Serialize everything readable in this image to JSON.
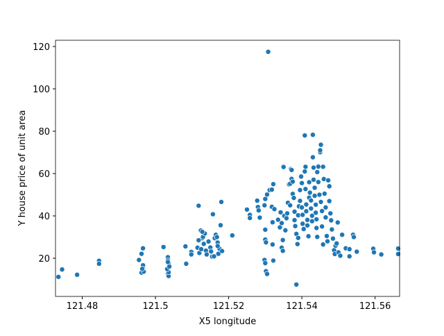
{
  "chart_data": {
    "type": "scatter",
    "xlabel": "X5 longitude",
    "ylabel": "Y house price of unit area",
    "color": "#1f77b4",
    "xlim": [
      121.4727,
      121.5667
    ],
    "ylim": [
      1.97,
      122.95
    ],
    "xticks": [
      121.48,
      121.5,
      121.52,
      121.54,
      121.56
    ],
    "yticks": [
      20,
      40,
      60,
      80,
      100,
      120
    ],
    "x": [
      121.4735,
      121.4745,
      121.4786,
      121.4846,
      121.4846,
      121.4955,
      121.4962,
      121.4966,
      121.4962,
      121.4966,
      121.4968,
      121.4966,
      121.4964,
      121.5022,
      121.5034,
      121.5034,
      121.5036,
      121.5034,
      121.5036,
      121.5036,
      121.5032,
      121.5038,
      121.5034,
      121.5082,
      121.5084,
      121.5098,
      121.5098,
      121.5118,
      121.5128,
      121.5124,
      121.513,
      121.5118,
      121.5115,
      121.512,
      121.5125,
      121.5132,
      121.5138,
      121.514,
      121.5145,
      121.515,
      121.5152,
      121.5155,
      121.516,
      121.5162,
      121.5165,
      121.5168,
      121.517,
      121.5172,
      121.5175,
      121.5178,
      121.518,
      121.5182,
      121.5157,
      121.5135,
      121.5128,
      121.517,
      121.521,
      121.525,
      121.5258,
      121.5258,
      121.528,
      121.5282,
      121.5278,
      121.5285,
      121.5298,
      121.53,
      121.5302,
      121.5305,
      121.53,
      121.53,
      121.5302,
      121.5298,
      121.53,
      121.5305,
      121.5308,
      121.5312,
      121.5318,
      121.5318,
      121.532,
      121.5322,
      121.532,
      121.5325,
      121.5322,
      121.5335,
      121.534,
      121.5342,
      121.5345,
      121.5345,
      121.5348,
      121.5348,
      121.535,
      121.5352,
      121.5355,
      121.5358,
      121.536,
      121.5362,
      121.5365,
      121.5368,
      121.5368,
      121.537,
      121.5372,
      121.5372,
      121.5375,
      121.5375,
      121.5378,
      121.538,
      121.538,
      121.5382,
      121.5385,
      121.5385,
      121.5388,
      121.539,
      121.539,
      121.5392,
      121.5395,
      121.5395,
      121.5398,
      121.54,
      121.54,
      121.5402,
      121.5402,
      121.5405,
      121.5408,
      121.5408,
      121.541,
      121.541,
      121.5412,
      121.5412,
      121.5415,
      121.5415,
      121.5418,
      121.542,
      121.542,
      121.5422,
      121.5425,
      121.5425,
      121.5428,
      121.5428,
      121.543,
      121.543,
      121.5432,
      121.5432,
      121.5435,
      121.5435,
      121.5438,
      121.5438,
      121.544,
      121.544,
      121.5442,
      121.5442,
      121.5445,
      121.5445,
      121.5448,
      121.545,
      121.545,
      121.5452,
      121.5452,
      121.5455,
      121.5455,
      121.5458,
      121.5458,
      121.546,
      121.5462,
      121.5465,
      121.5465,
      121.5468,
      121.547,
      121.5472,
      121.5475,
      121.5475,
      121.5478,
      121.548,
      121.5482,
      121.5485,
      121.5488,
      121.549,
      121.5492,
      121.5495,
      121.5498,
      121.55,
      121.5505,
      121.551,
      121.552,
      121.553,
      121.553,
      121.554,
      121.5542,
      121.555,
      121.5595,
      121.5597,
      121.5617,
      121.5663,
      121.5663
    ],
    "values": [
      11.2,
      14.7,
      12.2,
      18.8,
      17.4,
      19.2,
      22.1,
      24.7,
      13.2,
      15.6,
      13.7,
      16.7,
      15.0,
      25.3,
      20.5,
      19.0,
      17.7,
      12.8,
      11.6,
      13.4,
      14.9,
      16.1,
      18.2,
      25.6,
      17.4,
      23.0,
      21.8,
      44.8,
      29.5,
      33.1,
      30.1,
      28.5,
      25.0,
      22.5,
      24.3,
      26.8,
      23.6,
      21.8,
      27.9,
      25.1,
      23.2,
      20.8,
      20.9,
      29.5,
      31.1,
      30.0,
      27.4,
      22.1,
      24.5,
      35.6,
      46.6,
      23.4,
      40.8,
      31.7,
      32.5,
      25.8,
      30.8,
      43.0,
      40.5,
      39.0,
      44.2,
      42.6,
      47.2,
      39.2,
      19.2,
      17.7,
      13.9,
      12.6,
      33.5,
      28.8,
      27.5,
      45.0,
      48.0,
      50.1,
      117.5,
      52.2,
      52.4,
      44.3,
      37.0,
      55.0,
      26.5,
      43.2,
      18.9,
      38.2,
      34.6,
      41.7,
      36.6,
      25.0,
      23.5,
      28.6,
      63.1,
      40.0,
      33.2,
      38.9,
      41.2,
      46.2,
      54.9,
      55.2,
      45.0,
      62.1,
      61.7,
      57.5,
      56.2,
      50.4,
      48.5,
      42.0,
      38.0,
      35.2,
      31.5,
      7.6,
      26.7,
      29.6,
      40.3,
      44.5,
      47.1,
      52.2,
      58.6,
      55.5,
      44.0,
      40.5,
      36.3,
      33.8,
      78.0,
      61.0,
      63.2,
      52.7,
      45.4,
      42.2,
      38.1,
      35.5,
      30.4,
      48.6,
      55.9,
      51.0,
      47.3,
      43.5,
      40.1,
      37.5,
      67.7,
      78.3,
      62.8,
      57.1,
      53.3,
      49.5,
      45.3,
      41.5,
      38.4,
      34.3,
      30.1,
      60.7,
      56.0,
      63.3,
      50.0,
      70.1,
      71.0,
      73.6,
      46.6,
      42.3,
      35.0,
      26.5,
      63.2,
      57.4,
      50.5,
      44.0,
      39.3,
      30.5,
      28.0,
      56.8,
      54.0,
      47.0,
      41.2,
      37.9,
      33.6,
      29.3,
      23.8,
      22.0,
      25.9,
      27.0,
      36.9,
      22.8,
      21.2,
      31.1,
      24.7,
      20.9,
      24.3,
      31.1,
      30.0,
      23.1,
      24.5,
      22.8,
      21.8,
      24.6,
      22.0
    ]
  }
}
